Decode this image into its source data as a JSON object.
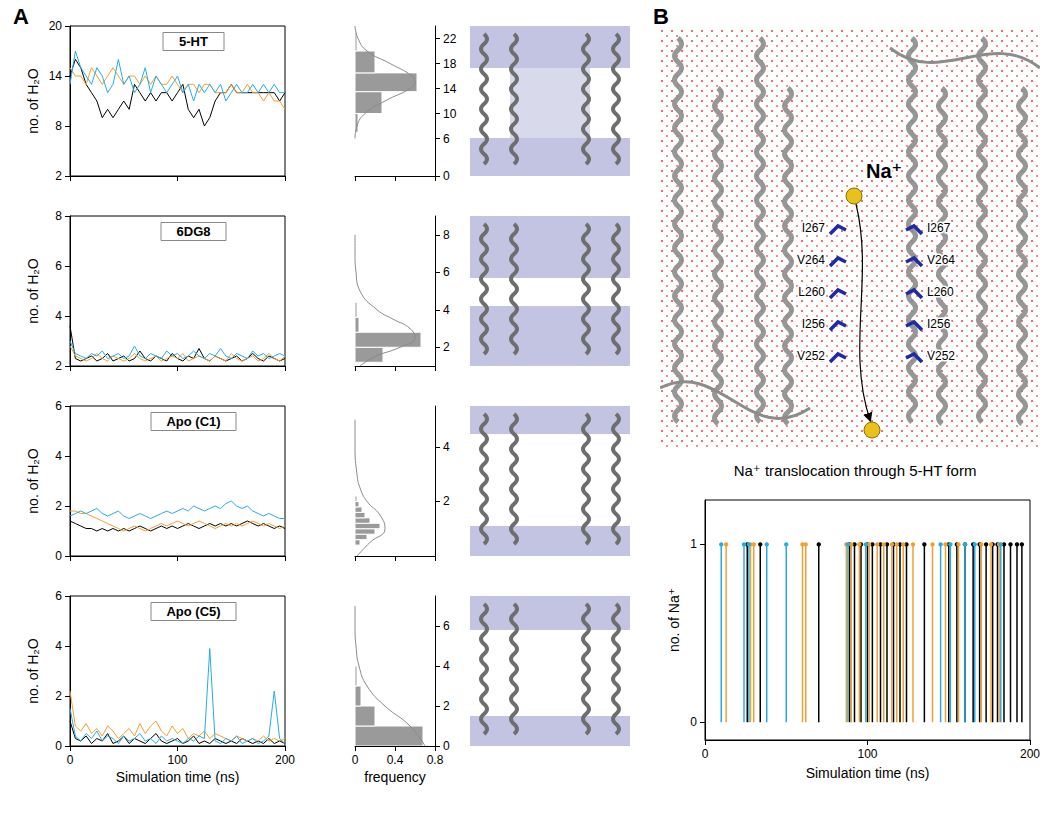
{
  "panel_labels": [
    "A",
    "B"
  ],
  "chart_data": [
    {
      "type": "line",
      "title": "5-HT",
      "x": [
        0,
        5,
        10,
        15,
        20,
        25,
        30,
        35,
        40,
        45,
        50,
        55,
        60,
        65,
        70,
        75,
        80,
        85,
        90,
        95,
        100,
        105,
        110,
        115,
        120,
        125,
        130,
        135,
        140,
        145,
        150,
        155,
        160,
        165,
        170,
        175,
        180,
        185,
        190,
        195,
        200
      ],
      "series": [
        {
          "color": "#000000",
          "values": [
            14,
            16,
            15,
            13,
            12,
            11,
            9,
            10,
            9,
            10,
            11,
            10,
            13,
            12,
            11,
            12,
            11,
            12,
            12,
            11,
            12,
            13,
            10,
            9,
            10,
            8,
            9,
            11,
            12,
            12,
            13,
            12,
            12,
            12,
            12,
            12,
            12,
            12,
            12,
            11,
            12
          ]
        },
        {
          "color": "#f0a030",
          "values": [
            15,
            14,
            14,
            13,
            15,
            14,
            13,
            14,
            15,
            14,
            13,
            14,
            14,
            13,
            14,
            13,
            14,
            13,
            13,
            14,
            13,
            12,
            13,
            13,
            12,
            13,
            13,
            12,
            12,
            12,
            13,
            12,
            12,
            13,
            12,
            12,
            11,
            12,
            11,
            11,
            10
          ]
        },
        {
          "color": "#29abe2",
          "values": [
            13,
            17,
            15,
            14,
            13,
            15,
            14,
            12,
            13,
            16,
            13,
            14,
            12,
            13,
            15,
            12,
            14,
            13,
            12,
            13,
            14,
            12,
            13,
            11,
            13,
            12,
            13,
            12,
            13,
            11,
            12,
            13,
            12,
            12,
            13,
            12,
            13,
            12,
            13,
            12,
            12
          ]
        }
      ],
      "xlim": [
        0,
        200
      ],
      "xticks": [
        0,
        100,
        200
      ],
      "ylim": [
        2,
        20
      ],
      "yticks": [
        2,
        8,
        14,
        20
      ],
      "ylabel": "no. of H₂O",
      "tick_labels": "y"
    },
    {
      "type": "line",
      "title": "6DG8",
      "x": [
        0,
        5,
        10,
        15,
        20,
        25,
        30,
        35,
        40,
        45,
        50,
        55,
        60,
        65,
        70,
        75,
        80,
        85,
        90,
        95,
        100,
        105,
        110,
        115,
        120,
        125,
        130,
        135,
        140,
        145,
        150,
        155,
        160,
        165,
        170,
        175,
        180,
        185,
        190,
        195,
        200
      ],
      "series": [
        {
          "color": "#000000",
          "values": [
            3.6,
            2.3,
            2.2,
            2.3,
            2.4,
            2.2,
            2.3,
            2.5,
            2.2,
            2.3,
            2.4,
            2.2,
            2.3,
            2.6,
            2.3,
            2.2,
            2.4,
            2.3,
            2.2,
            2.5,
            2.3,
            2.2,
            2.4,
            2.3,
            2.7,
            2.3,
            2.2,
            2.4,
            2.3,
            2.2,
            2.3,
            2.4,
            2.2,
            2.3,
            2.5,
            2.3,
            2.2,
            2.4,
            2.3,
            2.2,
            2.3
          ]
        },
        {
          "color": "#f0a030",
          "values": [
            2.8,
            2.4,
            2.3,
            2.2,
            2.3,
            2.5,
            2.3,
            2.2,
            2.4,
            2.3,
            2.2,
            2.3,
            2.5,
            2.3,
            2.2,
            2.3,
            2.4,
            2.2,
            2.3,
            2.4,
            2.3,
            2.5,
            2.2,
            2.3,
            2.4,
            2.3,
            2.2,
            2.4,
            2.3,
            2.2,
            2.5,
            2.3,
            2.2,
            2.3,
            2.4,
            2.2,
            2.3,
            2.5,
            2.3,
            2.2,
            2.4
          ]
        },
        {
          "color": "#29abe2",
          "values": [
            3.0,
            2.5,
            2.4,
            2.3,
            2.5,
            2.4,
            2.6,
            2.3,
            2.4,
            2.5,
            2.3,
            2.4,
            2.8,
            2.4,
            2.3,
            2.5,
            2.4,
            2.3,
            2.6,
            2.4,
            2.5,
            2.3,
            2.4,
            2.6,
            2.4,
            2.3,
            2.5,
            2.4,
            2.7,
            2.4,
            2.3,
            2.5,
            2.4,
            2.3,
            2.6,
            2.4,
            2.5,
            2.3,
            2.4,
            2.5,
            2.4
          ]
        }
      ],
      "xlim": [
        0,
        200
      ],
      "xticks": [
        0,
        100,
        200
      ],
      "ylim": [
        2,
        8
      ],
      "yticks": [
        2,
        4,
        6,
        8
      ],
      "ylabel": "no. of H₂O",
      "tick_labels": "y"
    },
    {
      "type": "line",
      "title": "Apo (C1)",
      "x": [
        0,
        5,
        10,
        15,
        20,
        25,
        30,
        35,
        40,
        45,
        50,
        55,
        60,
        65,
        70,
        75,
        80,
        85,
        90,
        95,
        100,
        105,
        110,
        115,
        120,
        125,
        130,
        135,
        140,
        145,
        150,
        155,
        160,
        165,
        170,
        175,
        180,
        185,
        190,
        195,
        200
      ],
      "series": [
        {
          "color": "#000000",
          "values": [
            1.4,
            1.3,
            1.2,
            1.1,
            1.1,
            1.0,
            1.1,
            1.0,
            1.1,
            1.0,
            1.1,
            1.0,
            1.1,
            1.2,
            1.1,
            1.0,
            1.1,
            1.2,
            1.1,
            1.2,
            1.1,
            1.2,
            1.3,
            1.2,
            1.1,
            1.2,
            1.3,
            1.2,
            1.3,
            1.2,
            1.3,
            1.2,
            1.3,
            1.4,
            1.3,
            1.2,
            1.3,
            1.2,
            1.1,
            1.2,
            1.1
          ]
        },
        {
          "color": "#f0a030",
          "values": [
            1.8,
            1.8,
            1.7,
            1.7,
            1.6,
            1.5,
            1.4,
            1.3,
            1.2,
            1.1,
            1.0,
            1.1,
            1.2,
            1.1,
            1.0,
            1.1,
            1.2,
            1.3,
            1.2,
            1.3,
            1.4,
            1.3,
            1.2,
            1.3,
            1.4,
            1.3,
            1.2,
            1.1,
            1.2,
            1.3,
            1.2,
            1.3,
            1.2,
            1.3,
            1.4,
            1.3,
            1.2,
            1.3,
            1.2,
            1.1,
            1.2
          ]
        },
        {
          "color": "#29abe2",
          "values": [
            1.6,
            1.7,
            1.8,
            1.7,
            1.8,
            1.9,
            1.7,
            1.6,
            1.7,
            1.8,
            1.6,
            1.5,
            1.6,
            1.7,
            1.6,
            1.5,
            1.6,
            1.7,
            1.8,
            1.7,
            1.8,
            1.9,
            1.8,
            2.0,
            1.9,
            1.8,
            1.9,
            2.0,
            1.9,
            2.1,
            2.2,
            2.0,
            1.9,
            2.0,
            1.8,
            1.7,
            1.6,
            1.7,
            1.6,
            1.5,
            1.5
          ]
        }
      ],
      "xlim": [
        0,
        200
      ],
      "xticks": [
        0,
        100,
        200
      ],
      "ylim": [
        0,
        6
      ],
      "yticks": [
        0,
        2,
        4,
        6
      ],
      "ylabel": "no. of H₂O",
      "tick_labels": "y"
    },
    {
      "type": "line",
      "title": "Apo (C5)",
      "x": [
        0,
        5,
        10,
        15,
        20,
        25,
        30,
        35,
        40,
        45,
        50,
        55,
        60,
        65,
        70,
        75,
        80,
        85,
        90,
        95,
        100,
        105,
        110,
        115,
        120,
        125,
        130,
        135,
        140,
        145,
        150,
        155,
        160,
        165,
        170,
        175,
        180,
        185,
        190,
        195,
        200
      ],
      "series": [
        {
          "color": "#000000",
          "values": [
            1.0,
            0.3,
            0.2,
            0.4,
            0.1,
            0.3,
            0.2,
            0.5,
            0.1,
            0.2,
            0.4,
            0.1,
            0.3,
            0.2,
            0.1,
            0.3,
            0.5,
            0.2,
            0.1,
            0.2,
            0.3,
            0.1,
            0.2,
            0.4,
            0.1,
            0.2,
            0.1,
            0.3,
            0.2,
            0.1,
            0.2,
            0.1,
            0.3,
            0.2,
            0.1,
            0.2,
            0.1,
            0.3,
            0.1,
            0.2,
            0.1
          ]
        },
        {
          "color": "#f0a030",
          "values": [
            2.2,
            0.8,
            0.6,
            0.9,
            0.5,
            0.7,
            0.4,
            0.8,
            0.6,
            0.3,
            0.5,
            0.7,
            0.4,
            0.9,
            0.5,
            0.8,
            1.0,
            0.6,
            0.4,
            0.8,
            0.5,
            0.7,
            0.3,
            0.5,
            0.4,
            0.6,
            0.3,
            0.5,
            0.4,
            0.3,
            0.2,
            0.4,
            0.3,
            0.2,
            0.3,
            0.2,
            0.4,
            0.2,
            0.3,
            0.2,
            0.3
          ]
        },
        {
          "color": "#29abe2",
          "values": [
            1.5,
            0.4,
            0.2,
            0.5,
            0.3,
            0.6,
            0.2,
            0.4,
            0.3,
            0.1,
            0.4,
            0.2,
            0.3,
            0.5,
            0.2,
            0.3,
            0.1,
            0.4,
            0.2,
            0.3,
            0.2,
            0.1,
            0.3,
            0.2,
            0.4,
            0.3,
            3.9,
            0.2,
            0.1,
            0.3,
            0.2,
            0.4,
            0.1,
            0.2,
            0.3,
            0.1,
            0.2,
            0.4,
            2.2,
            0.3,
            0.1
          ]
        }
      ],
      "xlim": [
        0,
        200
      ],
      "xticks": [
        0,
        100,
        200
      ],
      "ylim": [
        0,
        6
      ],
      "yticks": [
        0,
        2,
        4,
        6
      ],
      "ylabel": "no. of H₂O",
      "xlabel": "Simulation time (ns)"
    },
    {
      "type": "histogram",
      "orientation": "horizontal",
      "color": "#9a9a9a",
      "bins": [
        7,
        10,
        13.5,
        16.5,
        20,
        23
      ],
      "counts": [
        0.03,
        0.27,
        0.62,
        0.2,
        0.02
      ],
      "fit": {
        "x": [
          0.0,
          0.02,
          0.1,
          0.3,
          0.55,
          0.6,
          0.57,
          0.35,
          0.12,
          0.03,
          0.0
        ],
        "y": [
          6,
          8,
          10,
          12,
          14,
          15,
          16,
          18,
          20,
          22,
          24
        ]
      },
      "xlim": [
        0,
        0.8
      ],
      "xticks": [
        0,
        0.4,
        0.8
      ],
      "ylim": [
        0,
        24
      ],
      "yticks": [
        0,
        6,
        10,
        14,
        18,
        22
      ],
      "tick_labels": "y"
    },
    {
      "type": "histogram",
      "orientation": "horizontal",
      "color": "#9a9a9a",
      "bins": [
        1.2,
        2,
        2.8,
        3.6,
        4.4
      ],
      "counts": [
        0.28,
        0.66,
        0.04,
        0.02
      ],
      "fit": {
        "x": [
          0.05,
          0.2,
          0.45,
          0.6,
          0.55,
          0.38,
          0.22,
          0.05,
          0.01,
          0,
          0
        ],
        "y": [
          1,
          1.5,
          2,
          2.5,
          3,
          3.5,
          4,
          5,
          6,
          7,
          8
        ]
      },
      "xlim": [
        0,
        0.8
      ],
      "xticks": [
        0,
        0.4,
        0.8
      ],
      "ylim": [
        1,
        9
      ],
      "yticks": [
        2,
        4,
        6,
        8
      ],
      "tick_labels": "y"
    },
    {
      "type": "histogram",
      "orientation": "horizontal",
      "color": "#9a9a9a",
      "bins": [
        0.4,
        0.6,
        0.8,
        1.0,
        1.2,
        1.4,
        1.6,
        1.8,
        2.0,
        2.2
      ],
      "counts": [
        0.05,
        0.12,
        0.2,
        0.25,
        0.15,
        0.1,
        0.07,
        0.04,
        0.02
      ],
      "fit": {
        "x": [
          0.02,
          0.15,
          0.3,
          0.25,
          0.12,
          0.05,
          0.02,
          0,
          0
        ],
        "y": [
          0,
          0.5,
          1,
          1.5,
          2,
          2.5,
          3,
          4,
          5
        ]
      },
      "xlim": [
        0,
        0.8
      ],
      "xticks": [
        0,
        0.4,
        0.8
      ],
      "ylim": [
        0,
        5.5
      ],
      "yticks": [
        2,
        4
      ],
      "tick_labels": "y"
    },
    {
      "type": "histogram",
      "orientation": "horizontal",
      "color": "#9a9a9a",
      "bins": [
        0,
        1,
        2,
        3,
        4
      ],
      "counts": [
        0.68,
        0.2,
        0.06,
        0.02
      ],
      "fit": {
        "x": [
          0.7,
          0.55,
          0.3,
          0.12,
          0.04,
          0.01,
          0,
          0
        ],
        "y": [
          0,
          1,
          2,
          3,
          4,
          5,
          6,
          7
        ]
      },
      "xlim": [
        0,
        0.8
      ],
      "xticks": [
        0,
        0.4,
        0.8
      ],
      "ylim": [
        0,
        7.5
      ],
      "yticks": [
        0,
        2,
        4,
        6
      ],
      "xlabel": "frequency"
    },
    {
      "type": "stem",
      "title": "Na⁺ translocation through 5-HT form",
      "series": [
        {
          "color": "#000000",
          "x": [
            26,
            34,
            70,
            89,
            92,
            96,
            100,
            103,
            108,
            112,
            116,
            120,
            124,
            135,
            150,
            155,
            160,
            165,
            169,
            173,
            177,
            180,
            184,
            188,
            192,
            195
          ],
          "values": [
            1,
            1,
            1,
            1,
            1,
            1,
            1,
            1,
            1,
            1,
            1,
            1,
            1,
            1,
            1,
            1,
            1,
            1,
            1,
            1,
            1,
            1,
            1,
            1,
            1,
            1
          ]
        },
        {
          "color": "#f0a030",
          "x": [
            13,
            28,
            30,
            60,
            62,
            87,
            90,
            95,
            101,
            106,
            110,
            115,
            118,
            122,
            128,
            140,
            148,
            156,
            170,
            176,
            181
          ],
          "values": [
            1,
            1,
            1,
            1,
            1,
            1,
            1,
            1,
            1,
            1,
            1,
            1,
            1,
            1,
            1,
            1,
            1,
            1,
            1,
            1,
            1
          ]
        },
        {
          "color": "#29abe2",
          "x": [
            10,
            24,
            27,
            38,
            50,
            88,
            99,
            145,
            151,
            160,
            166,
            182
          ],
          "values": [
            1,
            1,
            1,
            1,
            1,
            1,
            1,
            1,
            1,
            1,
            1,
            1
          ]
        }
      ],
      "xlim": [
        0,
        200
      ],
      "xticks": [
        0,
        100,
        200
      ],
      "ylim": [
        -0.1,
        1.25
      ],
      "yticks": [
        0,
        1
      ],
      "xlabel": "Simulation time (ns)",
      "ylabel": "no. of Na⁺"
    }
  ],
  "diagram": {
    "ion_label": "Na⁺",
    "residues": [
      "I267",
      "V264",
      "L260",
      "I256",
      "V252"
    ]
  }
}
